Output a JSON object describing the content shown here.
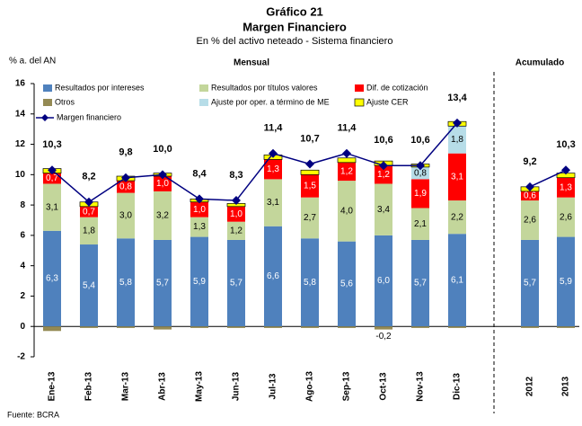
{
  "chart_data": {
    "type": "stacked_bar_line",
    "title": "Gráfico 21",
    "subtitle_main": "Margen Financiero",
    "subtitle": "En % del activo neteado - Sistema financiero",
    "y_axis_label": "% a. del AN",
    "section_labels": [
      "Mensual",
      "Acumulado"
    ],
    "source": "Fuente: BCRA",
    "categories": [
      "Ene-13",
      "Feb-13",
      "Mar-13",
      "Abr-13",
      "May-13",
      "Jun-13",
      "Jul-13",
      "Ago-13",
      "Sep-13",
      "Oct-13",
      "Nov-13",
      "Dic-13",
      "2012",
      "2013"
    ],
    "ylim": [
      -2,
      16
    ],
    "yticks": [
      -2,
      0,
      2,
      4,
      6,
      8,
      10,
      12,
      14,
      16
    ],
    "series": [
      {
        "name": "Resultados por intereses",
        "color": "#4f81bd",
        "values": [
          6.3,
          5.4,
          5.8,
          5.7,
          5.9,
          5.7,
          6.6,
          5.8,
          5.6,
          6.0,
          5.7,
          6.1,
          5.7,
          5.9
        ],
        "value_labels": [
          "6,3",
          "5,4",
          "5,8",
          "5,7",
          "5,9",
          "5,7",
          "6,6",
          "5,8",
          "5,6",
          "6,0",
          "5,7",
          "6,1",
          "5,7",
          "5,9"
        ]
      },
      {
        "name": "Resultados por títulos valores",
        "color": "#c3d69b",
        "values": [
          3.1,
          1.8,
          3.0,
          3.2,
          1.3,
          1.2,
          3.1,
          2.7,
          4.0,
          3.4,
          2.1,
          2.2,
          2.6,
          2.6
        ],
        "value_labels": [
          "3,1",
          "1,8",
          "3,0",
          "3,2",
          "1,3",
          "1,2",
          "3,1",
          "2,7",
          "4,0",
          "3,4",
          "2,1",
          "2,2",
          "2,6",
          "2,6"
        ]
      },
      {
        "name": "Dif. de cotización",
        "color": "#ff0000",
        "values": [
          0.7,
          0.7,
          0.8,
          1.0,
          1.0,
          1.0,
          1.3,
          1.5,
          1.2,
          1.2,
          1.9,
          3.1,
          0.6,
          1.3
        ],
        "value_labels": [
          "0,7",
          "0,7",
          "0,8",
          "1,0",
          "1,0",
          "1,0",
          "1,3",
          "1,5",
          "1,2",
          "1,2",
          "1,9",
          "3,1",
          "0,6",
          "1,3"
        ]
      },
      {
        "name": "Otros",
        "color": "#948a54",
        "values": [
          -0.3,
          -0.1,
          -0.1,
          -0.2,
          -0.1,
          -0.1,
          -0.1,
          -0.1,
          -0.1,
          -0.2,
          -0.1,
          -0.1,
          -0.1,
          -0.1
        ],
        "value_labels": [
          null,
          null,
          null,
          null,
          null,
          null,
          null,
          null,
          null,
          "-0,2",
          null,
          null,
          null,
          null
        ]
      },
      {
        "name": "Ajuste por oper. a término de ME",
        "color": "#b7dde8",
        "values": [
          0,
          0,
          0,
          0,
          0,
          0,
          0,
          0,
          0,
          0,
          0.8,
          1.8,
          0,
          0
        ],
        "value_labels": [
          null,
          null,
          null,
          null,
          null,
          null,
          null,
          null,
          null,
          null,
          "0,8",
          "1,8",
          null,
          null
        ]
      },
      {
        "name": "Ajuste CER",
        "color": "#ffff00",
        "values": [
          0.3,
          0.3,
          0.3,
          0.2,
          0.2,
          0.2,
          0.3,
          0.3,
          0.3,
          0.3,
          0.2,
          0.3,
          0.3,
          0.3
        ]
      }
    ],
    "line": {
      "name": "Margen financiero",
      "color": "#000080",
      "values": [
        10.3,
        8.2,
        9.8,
        10.0,
        8.4,
        8.3,
        11.4,
        10.7,
        11.4,
        10.6,
        10.6,
        13.4,
        9.2,
        10.3
      ],
      "value_labels": [
        "10,3",
        "8,2",
        "9,8",
        "10,0",
        "8,4",
        "8,3",
        "11,4",
        "10,7",
        "11,4",
        "10,6",
        "10,6",
        "13,4",
        "9,2",
        "10,3"
      ]
    }
  }
}
